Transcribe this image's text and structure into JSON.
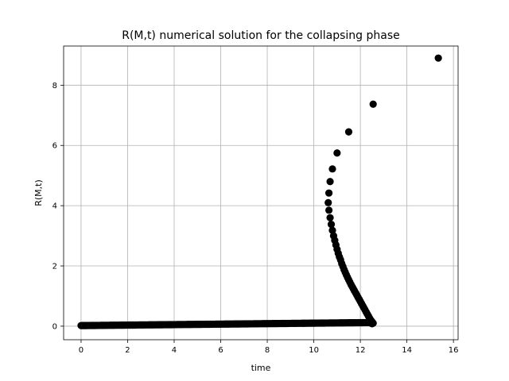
{
  "chart_data": {
    "type": "scatter",
    "title": "R(M,t) numerical solution for the collapsing phase",
    "xlabel": "time",
    "ylabel": "R(M,t)",
    "xlim": [
      -0.75,
      16.2
    ],
    "ylim": [
      -0.45,
      9.3
    ],
    "xticks": [
      0,
      2,
      4,
      6,
      8,
      10,
      12,
      14,
      16
    ],
    "yticks": [
      0,
      2,
      4,
      6,
      8
    ],
    "grid": true,
    "marker_color": "#000000",
    "baseline": {
      "x_start": 0.0,
      "x_end": 12.45,
      "y_start": 0.02,
      "y_end": 0.12
    },
    "points": [
      [
        10.65,
        4.42
      ],
      [
        10.7,
        4.8
      ],
      [
        10.8,
        5.22
      ],
      [
        11.0,
        5.75
      ],
      [
        11.5,
        6.45
      ],
      [
        12.55,
        7.37
      ],
      [
        15.35,
        8.9
      ],
      [
        10.62,
        4.1
      ],
      [
        10.65,
        3.85
      ],
      [
        10.7,
        3.6
      ],
      [
        10.75,
        3.38
      ],
      [
        10.8,
        3.18
      ],
      [
        10.85,
        3.0
      ],
      [
        10.9,
        2.85
      ],
      [
        10.95,
        2.7
      ],
      [
        11.0,
        2.55
      ],
      [
        11.05,
        2.42
      ],
      [
        11.1,
        2.3
      ],
      [
        11.15,
        2.2
      ],
      [
        11.2,
        2.08
      ],
      [
        11.25,
        1.98
      ],
      [
        11.3,
        1.88
      ],
      [
        11.35,
        1.79
      ],
      [
        11.4,
        1.7
      ],
      [
        11.45,
        1.62
      ],
      [
        11.5,
        1.54
      ],
      [
        11.55,
        1.46
      ],
      [
        11.6,
        1.38
      ],
      [
        11.65,
        1.31
      ],
      [
        11.7,
        1.24
      ],
      [
        11.75,
        1.17
      ],
      [
        11.8,
        1.1
      ],
      [
        11.85,
        1.03
      ],
      [
        11.9,
        0.96
      ],
      [
        11.95,
        0.89
      ],
      [
        12.0,
        0.82
      ],
      [
        12.05,
        0.75
      ],
      [
        12.1,
        0.68
      ],
      [
        12.15,
        0.61
      ],
      [
        12.2,
        0.54
      ],
      [
        12.25,
        0.47
      ],
      [
        12.3,
        0.4
      ],
      [
        12.35,
        0.33
      ],
      [
        12.4,
        0.26
      ],
      [
        12.45,
        0.2
      ],
      [
        12.5,
        0.15
      ],
      [
        12.52,
        0.12
      ],
      [
        12.3,
        0.13
      ],
      [
        12.4,
        0.14
      ],
      [
        12.55,
        0.1
      ],
      [
        12.5,
        0.08
      ]
    ]
  }
}
